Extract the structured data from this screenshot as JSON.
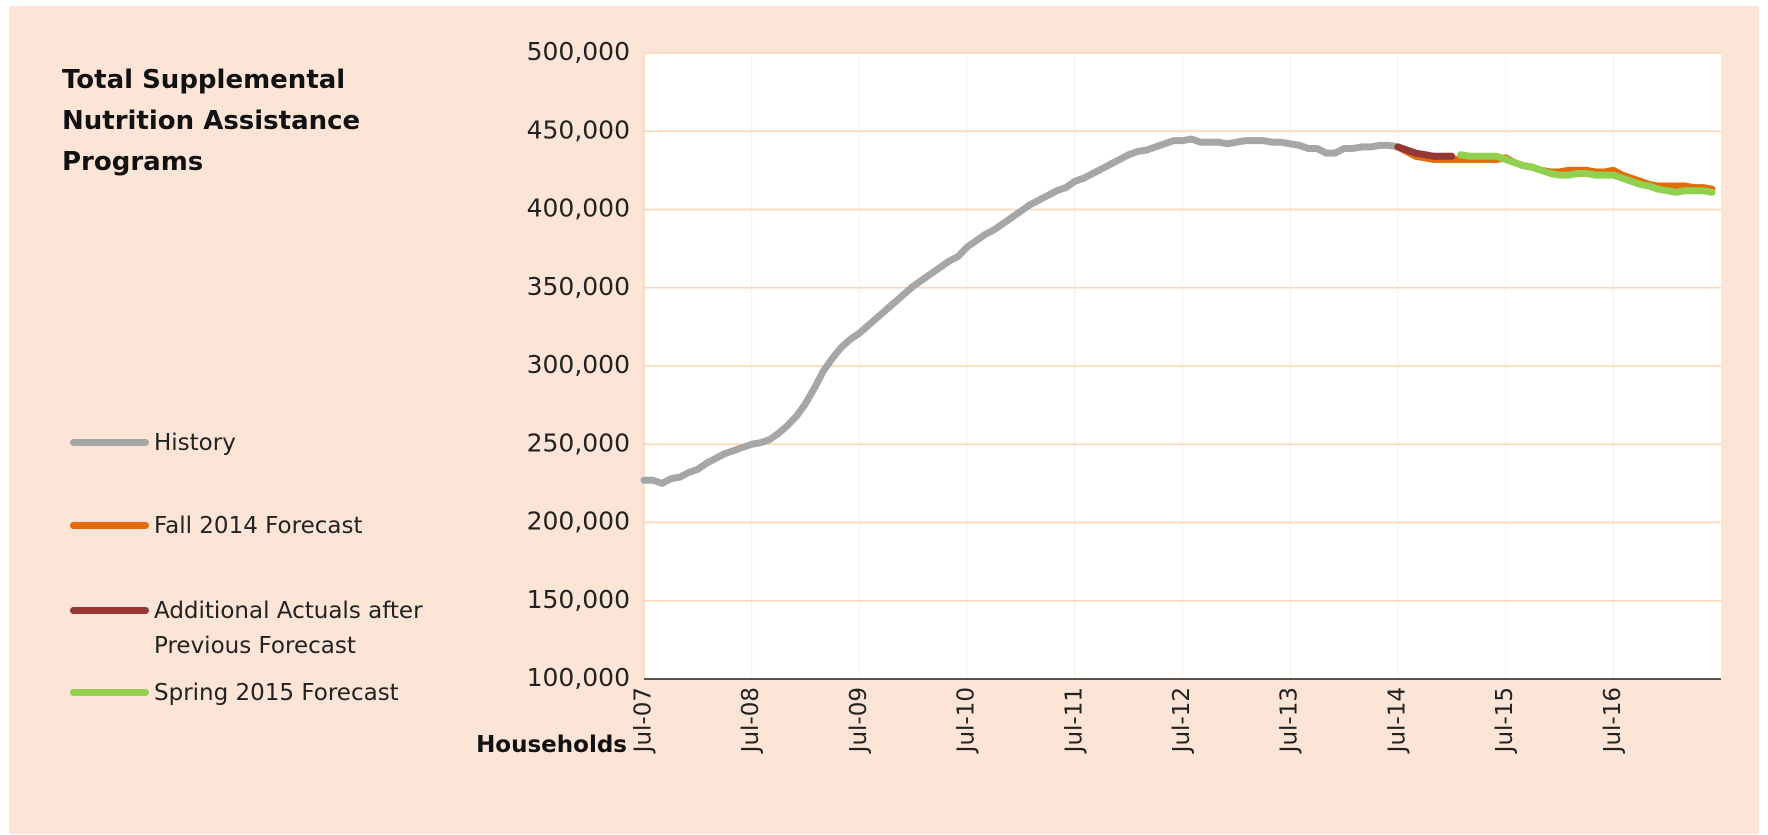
{
  "chart_data": {
    "type": "line",
    "title": "Total Supplemental Nutrition Assistance Programs",
    "y_label": "Households",
    "categories": [
      "Jul-07",
      null,
      null,
      null,
      null,
      null,
      null,
      null,
      null,
      null,
      null,
      null,
      "Jul-08",
      null,
      null,
      null,
      null,
      null,
      null,
      null,
      null,
      null,
      null,
      null,
      "Jul-09",
      null,
      null,
      null,
      null,
      null,
      null,
      null,
      null,
      null,
      null,
      null,
      "Jul-10",
      null,
      null,
      null,
      null,
      null,
      null,
      null,
      null,
      null,
      null,
      null,
      "Jul-11",
      null,
      null,
      null,
      null,
      null,
      null,
      null,
      null,
      null,
      null,
      null,
      "Jul-12",
      null,
      null,
      null,
      null,
      null,
      null,
      null,
      null,
      null,
      null,
      null,
      "Jul-13",
      null,
      null,
      null,
      null,
      null,
      null,
      null,
      null,
      null,
      null,
      null,
      "Jul-14",
      null,
      null,
      null,
      null,
      null,
      null,
      null,
      null,
      null,
      null,
      null,
      "Jul-15",
      null,
      null,
      null,
      null,
      null,
      null,
      null,
      null,
      null,
      null,
      null,
      "Jul-16",
      null,
      null,
      null,
      null,
      null,
      null,
      null,
      null,
      null,
      null,
      null
    ],
    "series": [
      {
        "name": "History",
        "color": "#a6a6a6",
        "values": [
          227000,
          227000,
          225000,
          228000,
          229000,
          232000,
          234000,
          238000,
          241000,
          244000,
          246000,
          248000,
          250000,
          251000,
          253000,
          257000,
          262000,
          268000,
          276000,
          286000,
          297000,
          305000,
          312000,
          317000,
          321000,
          326000,
          331000,
          336000,
          341000,
          346000,
          351000,
          355000,
          359000,
          363000,
          367000,
          370000,
          376000,
          380000,
          384000,
          387000,
          391000,
          395000,
          399000,
          403000,
          406000,
          409000,
          412000,
          414000,
          418000,
          420000,
          423000,
          426000,
          429000,
          432000,
          435000,
          437000,
          438000,
          440000,
          442000,
          444000,
          444000,
          445000,
          443000,
          443000,
          443000,
          442000,
          443000,
          444000,
          444000,
          444000,
          443000,
          443000,
          442000,
          441000,
          439000,
          439000,
          436000,
          436000,
          439000,
          439000,
          440000,
          440000,
          441000,
          441000,
          440000,
          null,
          null,
          null,
          null,
          null,
          null,
          null,
          null,
          null,
          null,
          null,
          null,
          null,
          null,
          null,
          null,
          null,
          null,
          null,
          null,
          null,
          null,
          null,
          null,
          null,
          null,
          null,
          null,
          null,
          null,
          null,
          null,
          null,
          null,
          null
        ]
      },
      {
        "name": "Fall 2014 Forecast",
        "color": "#e36c09",
        "values": [
          null,
          null,
          null,
          null,
          null,
          null,
          null,
          null,
          null,
          null,
          null,
          null,
          null,
          null,
          null,
          null,
          null,
          null,
          null,
          null,
          null,
          null,
          null,
          null,
          null,
          null,
          null,
          null,
          null,
          null,
          null,
          null,
          null,
          null,
          null,
          null,
          null,
          null,
          null,
          null,
          null,
          null,
          null,
          null,
          null,
          null,
          null,
          null,
          null,
          null,
          null,
          null,
          null,
          null,
          null,
          null,
          null,
          null,
          null,
          null,
          null,
          null,
          null,
          null,
          null,
          null,
          null,
          null,
          null,
          null,
          null,
          null,
          null,
          null,
          null,
          null,
          null,
          null,
          null,
          null,
          null,
          null,
          null,
          null,
          440000,
          437000,
          434000,
          433000,
          432000,
          432000,
          432000,
          432000,
          432000,
          432000,
          432000,
          432000,
          433000,
          430000,
          428000,
          427000,
          425000,
          424000,
          424000,
          425000,
          425000,
          425000,
          424000,
          424000,
          425000,
          422000,
          420000,
          418000,
          416000,
          415000,
          415000,
          415000,
          415000,
          414000,
          414000,
          413000
        ]
      },
      {
        "name": "Additional Actuals after Previous Forecast",
        "color": "#953735",
        "values": [
          null,
          null,
          null,
          null,
          null,
          null,
          null,
          null,
          null,
          null,
          null,
          null,
          null,
          null,
          null,
          null,
          null,
          null,
          null,
          null,
          null,
          null,
          null,
          null,
          null,
          null,
          null,
          null,
          null,
          null,
          null,
          null,
          null,
          null,
          null,
          null,
          null,
          null,
          null,
          null,
          null,
          null,
          null,
          null,
          null,
          null,
          null,
          null,
          null,
          null,
          null,
          null,
          null,
          null,
          null,
          null,
          null,
          null,
          null,
          null,
          null,
          null,
          null,
          null,
          null,
          null,
          null,
          null,
          null,
          null,
          null,
          null,
          null,
          null,
          null,
          null,
          null,
          null,
          null,
          null,
          null,
          null,
          null,
          null,
          440000,
          438000,
          436000,
          435000,
          434000,
          434000,
          434000,
          null,
          null,
          null,
          null,
          null,
          null,
          null,
          null,
          null,
          null,
          null,
          null,
          null,
          null,
          null,
          null,
          null,
          null,
          null,
          null,
          null,
          null,
          null,
          null,
          null,
          null,
          null,
          null,
          null
        ]
      },
      {
        "name": "Spring 2015 Forecast",
        "color": "#92d050",
        "values": [
          null,
          null,
          null,
          null,
          null,
          null,
          null,
          null,
          null,
          null,
          null,
          null,
          null,
          null,
          null,
          null,
          null,
          null,
          null,
          null,
          null,
          null,
          null,
          null,
          null,
          null,
          null,
          null,
          null,
          null,
          null,
          null,
          null,
          null,
          null,
          null,
          null,
          null,
          null,
          null,
          null,
          null,
          null,
          null,
          null,
          null,
          null,
          null,
          null,
          null,
          null,
          null,
          null,
          null,
          null,
          null,
          null,
          null,
          null,
          null,
          null,
          null,
          null,
          null,
          null,
          null,
          null,
          null,
          null,
          null,
          null,
          null,
          null,
          null,
          null,
          null,
          null,
          null,
          null,
          null,
          null,
          null,
          null,
          null,
          null,
          null,
          null,
          null,
          null,
          null,
          null,
          435000,
          434000,
          434000,
          434000,
          434000,
          432000,
          430000,
          428000,
          427000,
          425000,
          423000,
          422000,
          422000,
          423000,
          423000,
          422000,
          422000,
          422000,
          420000,
          418000,
          416000,
          415000,
          413000,
          412000,
          411000,
          412000,
          412000,
          412000,
          411000
        ]
      }
    ],
    "ylim": [
      100000,
      500000
    ],
    "yticks": [
      {
        "value": 100000,
        "label": "100,000"
      },
      {
        "value": 150000,
        "label": "150,000"
      },
      {
        "value": 200000,
        "label": "200,000"
      },
      {
        "value": 250000,
        "label": "250,000"
      },
      {
        "value": 300000,
        "label": "300,000"
      },
      {
        "value": 350000,
        "label": "350,000"
      },
      {
        "value": 400000,
        "label": "400,000"
      },
      {
        "value": 450000,
        "label": "450,000"
      },
      {
        "value": 500000,
        "label": "500,000"
      }
    ],
    "grid": true,
    "legend": "left"
  }
}
